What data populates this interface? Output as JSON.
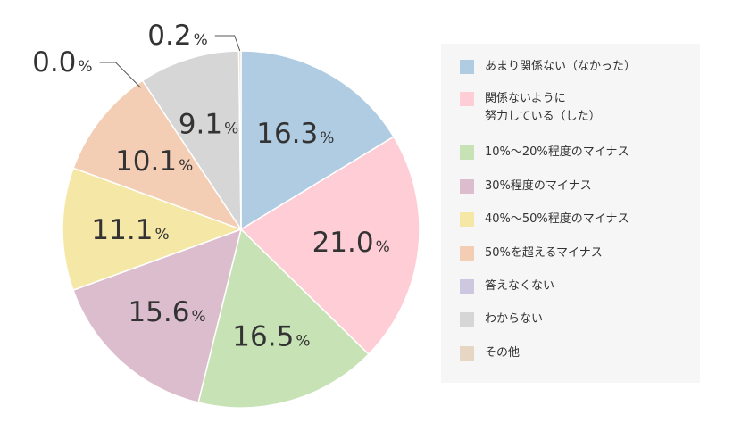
{
  "chart_data": {
    "type": "pie",
    "start": "top",
    "direction": "clockwise",
    "slices": [
      {
        "label": "あまり関係ない（なかった）",
        "value": 16.3,
        "display": "16.3",
        "color": "#b0cce2"
      },
      {
        "label": "関係ないように\n努力している（した）",
        "value": 21.0,
        "display": "21.0",
        "color": "#fecdd6"
      },
      {
        "label": "10%～20%程度のマイナス",
        "value": 16.5,
        "display": "16.5",
        "color": "#c7e3b5"
      },
      {
        "label": "30%程度のマイナス",
        "value": 15.6,
        "display": "15.6",
        "color": "#dbbdcd"
      },
      {
        "label": "40%～50%程度のマイナス",
        "value": 11.1,
        "display": "11.1",
        "color": "#f5e8a6"
      },
      {
        "label": "50%を超えるマイナス",
        "value": 10.1,
        "display": "10.1",
        "color": "#f4cdb5"
      },
      {
        "label": "答えなくない",
        "value": 0.0,
        "display": "0.0",
        "color": "#cdc8e0"
      },
      {
        "label": "わからない",
        "value": 9.1,
        "display": "9.1",
        "color": "#d6d6d6"
      },
      {
        "label": "その他",
        "value": 0.2,
        "display": "0.2",
        "color": "#e6d6c3"
      }
    ],
    "unit": "%"
  }
}
